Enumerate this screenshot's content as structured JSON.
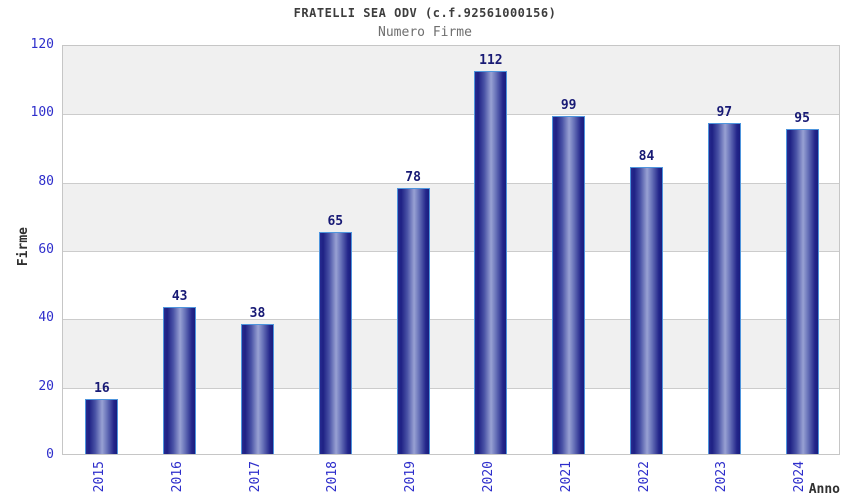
{
  "header": {
    "title": "FRATELLI SEA ODV (c.f.92561000156)",
    "subtitle": "Numero Firme"
  },
  "chart_data": {
    "type": "bar",
    "title": "FRATELLI SEA ODV (c.f.92561000156)",
    "subtitle": "Numero Firme",
    "categories": [
      "2015",
      "2016",
      "2017",
      "2018",
      "2019",
      "2020",
      "2021",
      "2022",
      "2023",
      "2024"
    ],
    "values": [
      16,
      43,
      38,
      65,
      78,
      112,
      99,
      84,
      97,
      95
    ],
    "xlabel": "Anno",
    "ylabel": "Firme",
    "ylim": [
      0,
      120
    ],
    "ytick_interval": 20,
    "yticks": [
      0,
      20,
      40,
      60,
      80,
      100,
      120
    ],
    "grid": true,
    "legend_position": "none",
    "colors": {
      "bar_dark": "#1e2184",
      "bar_light": "#98a1d3",
      "bar_outline": "#4e95dd",
      "value_label": "#181a75",
      "tick_label": "#2e2ecb",
      "band": "#f0f0f0",
      "gridline": "#cccccc",
      "title": "#3d3d3d",
      "subtitle": "#6f6f6f"
    }
  }
}
